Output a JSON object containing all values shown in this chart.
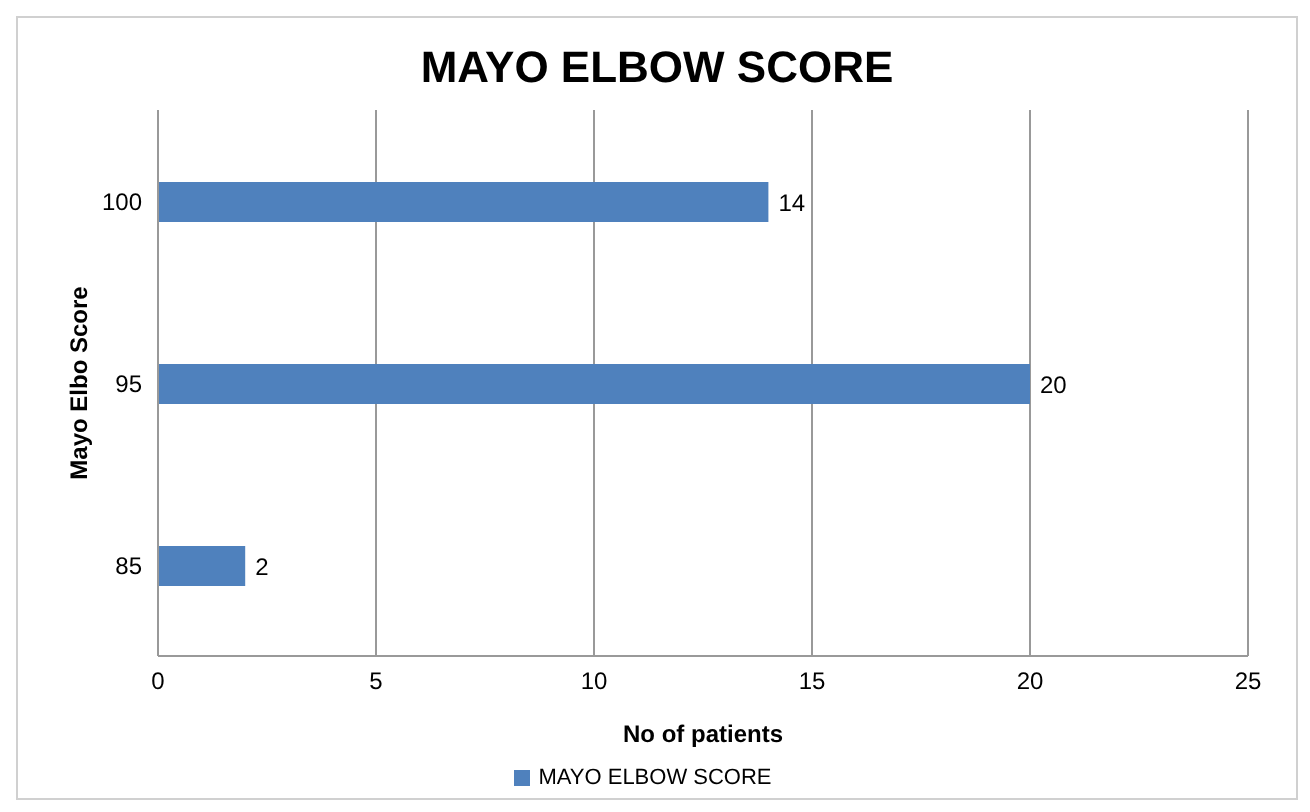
{
  "chart_data": {
    "type": "bar",
    "orientation": "horizontal",
    "title": "MAYO ELBOW SCORE",
    "xlabel": "No of patients",
    "ylabel": "Mayo  Elbo Score",
    "categories": [
      "100",
      "95",
      "85"
    ],
    "series": [
      {
        "name": "MAYO ELBOW SCORE",
        "color": "#4f81bd",
        "values": [
          14,
          20,
          2
        ]
      }
    ],
    "xlim": [
      0,
      25
    ],
    "xticks": [
      0,
      5,
      10,
      15,
      20,
      25
    ],
    "grid": "x",
    "legend": "bottom",
    "data_labels": true
  }
}
